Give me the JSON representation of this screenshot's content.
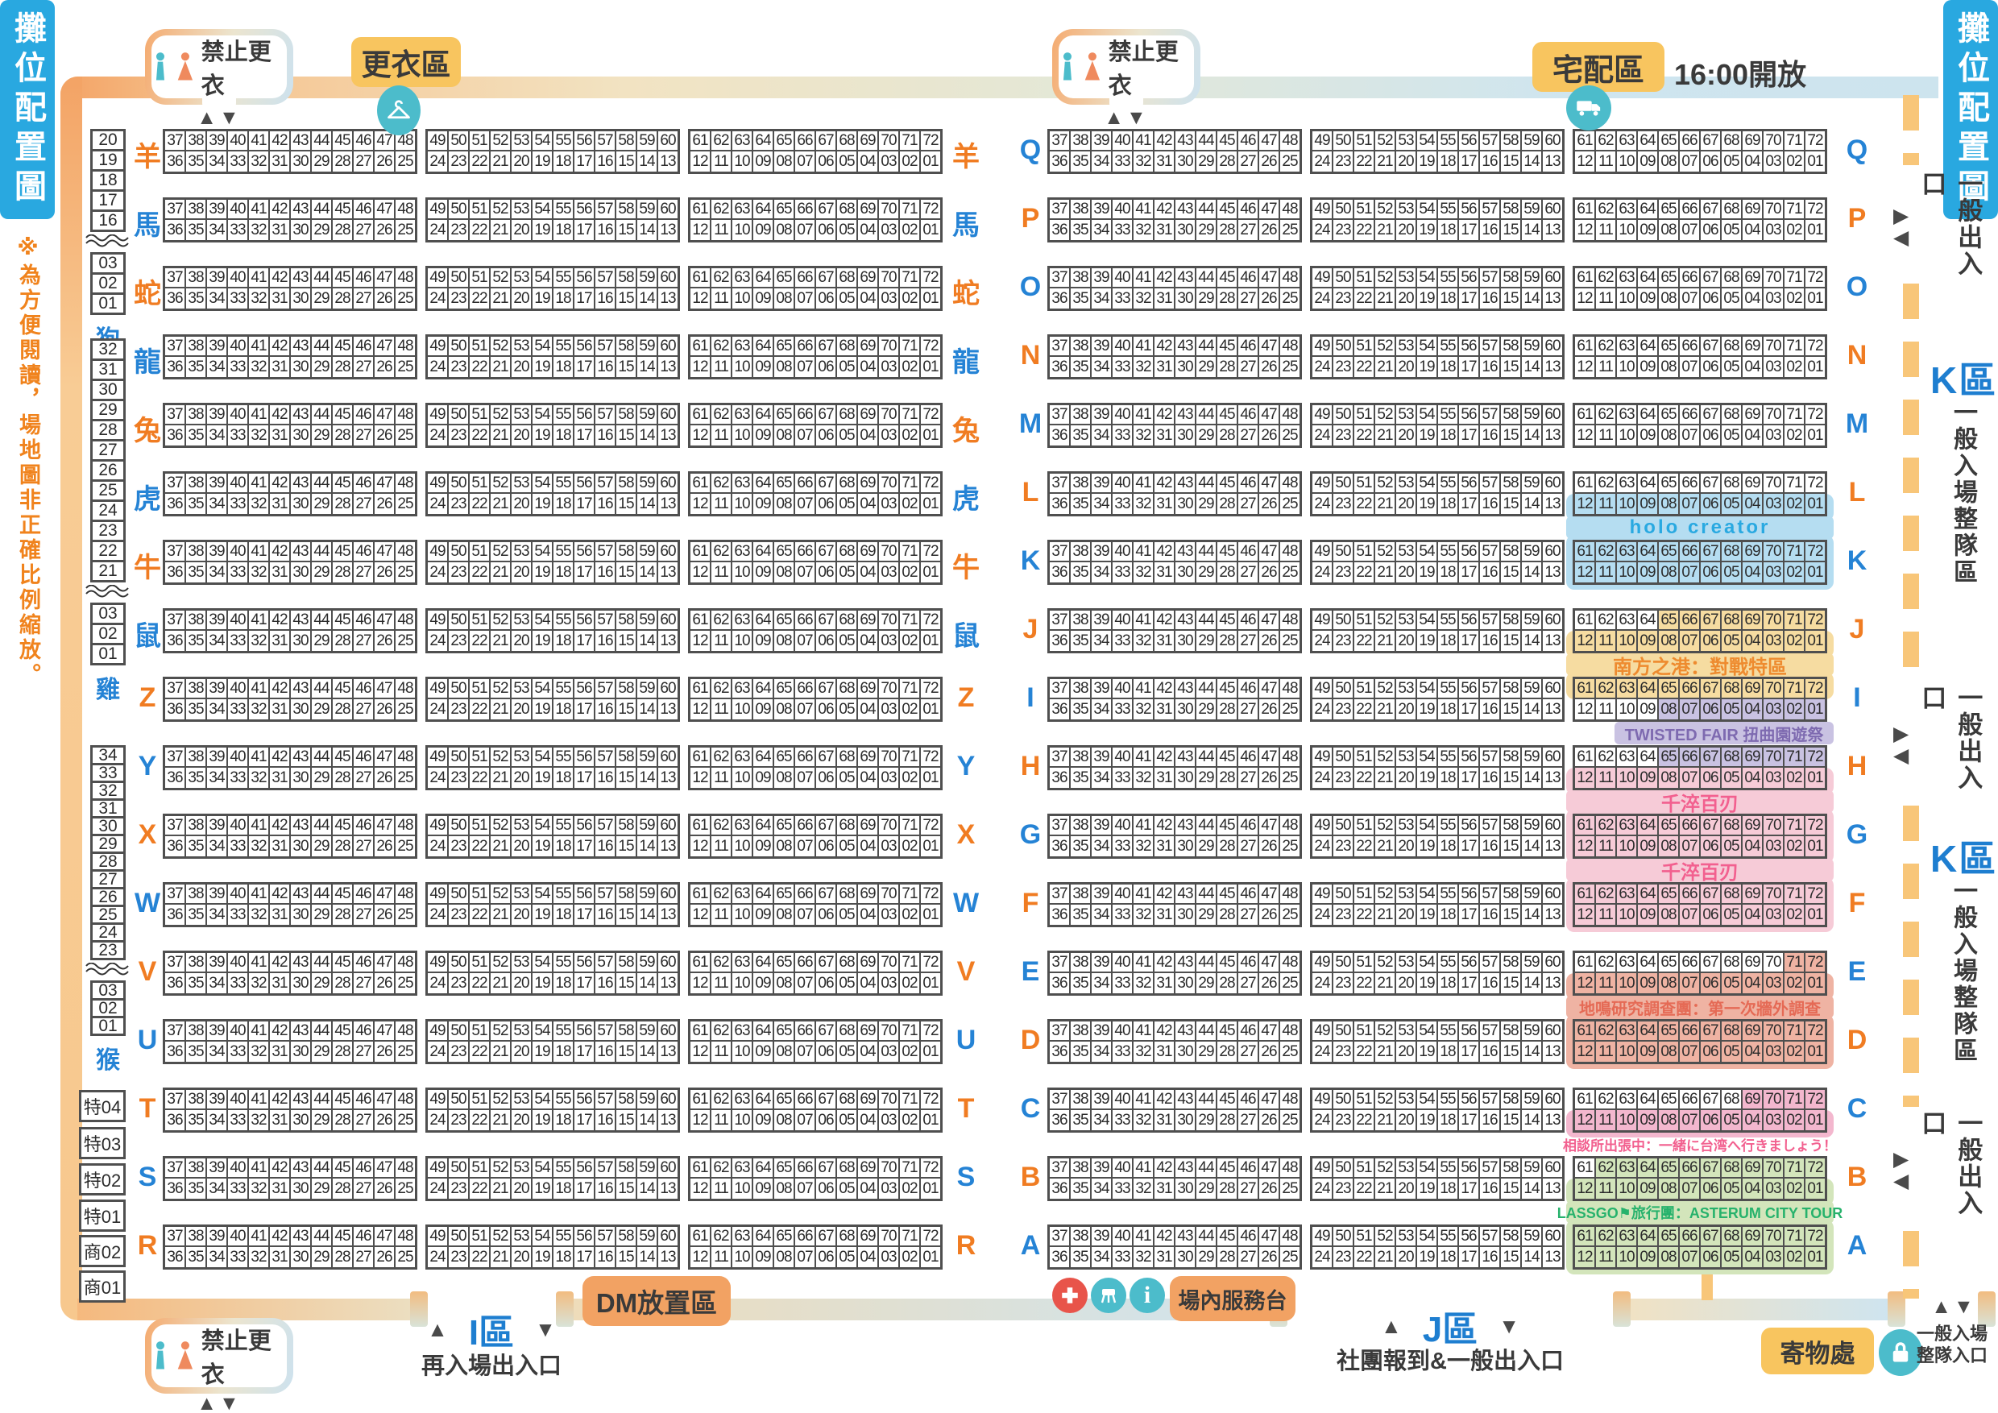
{
  "sidebars": {
    "left_title": "攤位配置圖",
    "right_title": "攤位配置圖",
    "note": "※為方便閱讀，場地圖非正確比例縮放。"
  },
  "legend_badges": {
    "no_changing": "禁止更衣",
    "changing_area": "更衣區",
    "delivery_area": "宅配區",
    "delivery_open_time": "16:00開放",
    "dm_area": "DM放置區",
    "service_counter": "場內服務台",
    "cloakroom": "寄物處"
  },
  "entrances": {
    "i_zone": "I區",
    "i_zone_desc": "再入場出入口",
    "j_zone": "J區",
    "j_zone_desc": "社團報到&一般出入口",
    "general_exit": "一般出入口",
    "k_zone": "K區",
    "queue_area": "一般入場整隊區",
    "queue_entrance_line1": "一般入場",
    "queue_entrance_line2": "整隊入口"
  },
  "icons": {
    "up": "▲",
    "down": "▼",
    "up_down": "▲▼",
    "right_arrow": "▶",
    "left_arrow": "◀",
    "info_glyph": "i",
    "names": [
      "male-icon",
      "female-icon",
      "hanger-icon",
      "truck-icon",
      "first-aid-icon",
      "stool-icon",
      "info-icon",
      "lock-icon"
    ]
  },
  "colors": {
    "accent_blue": "#29a8e0",
    "label_orange": "#f07c22",
    "label_blue": "#2583d5",
    "note_orange": "#f0831d",
    "dash_orange": "#f8c679",
    "teal_icon": "#4cbccb",
    "red_icon": "#e8544a",
    "highlight": {
      "blue": "#b5ddf1",
      "yellow": "#f6dca1",
      "purple": "#c9c2e2",
      "pink": "#f6cbd7",
      "salmon": "#efb3a3",
      "pinkC": "#f3b7ce",
      "green": "#d3e5bb"
    }
  },
  "map": {
    "blocks": [
      {
        "top": [
          "37",
          "38",
          "39",
          "40",
          "41",
          "42",
          "43",
          "44",
          "45",
          "46",
          "47",
          "48"
        ],
        "bottom": [
          "36",
          "35",
          "34",
          "33",
          "32",
          "31",
          "30",
          "29",
          "28",
          "27",
          "26",
          "25"
        ]
      },
      {
        "top": [
          "49",
          "50",
          "51",
          "52",
          "53",
          "54",
          "55",
          "56",
          "57",
          "58",
          "59",
          "60"
        ],
        "bottom": [
          "24",
          "23",
          "22",
          "21",
          "20",
          "19",
          "18",
          "17",
          "16",
          "15",
          "14",
          "13"
        ]
      },
      {
        "top": [
          "61",
          "62",
          "63",
          "64",
          "65",
          "66",
          "67",
          "68",
          "69",
          "70",
          "71",
          "72"
        ],
        "bottom": [
          "12",
          "11",
          "10",
          "09",
          "08",
          "07",
          "06",
          "05",
          "04",
          "03",
          "02",
          "01"
        ]
      }
    ],
    "rows_left": [
      {
        "label": "羊",
        "color": "orange"
      },
      {
        "label": "馬",
        "color": "blue"
      },
      {
        "label": "蛇",
        "color": "orange"
      },
      {
        "label": "龍",
        "color": "blue"
      },
      {
        "label": "兔",
        "color": "orange"
      },
      {
        "label": "虎",
        "color": "blue"
      },
      {
        "label": "牛",
        "color": "orange"
      },
      {
        "label": "鼠",
        "color": "blue"
      },
      {
        "label": "Z",
        "color": "orange"
      },
      {
        "label": "Y",
        "color": "blue"
      },
      {
        "label": "X",
        "color": "orange"
      },
      {
        "label": "W",
        "color": "blue"
      },
      {
        "label": "V",
        "color": "orange"
      },
      {
        "label": "U",
        "color": "blue"
      },
      {
        "label": "T",
        "color": "orange"
      },
      {
        "label": "S",
        "color": "blue"
      },
      {
        "label": "R",
        "color": "orange"
      }
    ],
    "rows_right": [
      {
        "label": "Q",
        "color": "blue",
        "hl": null
      },
      {
        "label": "P",
        "color": "orange",
        "hl": null
      },
      {
        "label": "O",
        "color": "blue",
        "hl": null
      },
      {
        "label": "N",
        "color": "orange",
        "hl": null
      },
      {
        "label": "M",
        "color": "blue",
        "hl": null
      },
      {
        "label": "L",
        "color": "orange",
        "hl": {
          "wrap": "bottom",
          "wrapColor": "blue",
          "top": null,
          "bottom": {
            "color": "blue",
            "from": 0,
            "to": 11
          }
        }
      },
      {
        "label": "K",
        "color": "blue",
        "hl": {
          "wrap": "full",
          "wrapColor": "blue",
          "top": {
            "color": "blue",
            "from": 0,
            "to": 11
          },
          "bottom": {
            "color": "blue",
            "from": 0,
            "to": 11
          }
        }
      },
      {
        "label": "J",
        "color": "orange",
        "hl": {
          "wrap": "bottom",
          "wrapColor": "yellow",
          "top": {
            "color": "yellow",
            "from": 4,
            "to": 11
          },
          "bottom": {
            "color": "yellow",
            "from": 0,
            "to": 11
          }
        }
      },
      {
        "label": "I",
        "color": "blue",
        "hl": {
          "wrap": "top",
          "wrapColor": "yellow",
          "top": {
            "color": "yellow",
            "from": 0,
            "to": 11
          },
          "bottom": {
            "color": "purple",
            "from": 4,
            "to": 11
          }
        }
      },
      {
        "label": "H",
        "color": "orange",
        "hl": {
          "wrap": "bottom",
          "wrapColor": "pink",
          "top": {
            "color": "purple",
            "from": 4,
            "to": 11
          },
          "bottom": {
            "color": "pink",
            "from": 0,
            "to": 11
          }
        }
      },
      {
        "label": "G",
        "color": "blue",
        "hl": {
          "wrap": "full",
          "wrapColor": "pink",
          "top": {
            "color": "pink",
            "from": 0,
            "to": 11
          },
          "bottom": {
            "color": "pink",
            "from": 0,
            "to": 11
          }
        }
      },
      {
        "label": "F",
        "color": "orange",
        "hl": {
          "wrap": "full",
          "wrapColor": "pink",
          "top": {
            "color": "pink",
            "from": 0,
            "to": 11
          },
          "bottom": {
            "color": "pink",
            "from": 0,
            "to": 11
          }
        }
      },
      {
        "label": "E",
        "color": "blue",
        "hl": {
          "wrap": "bottom",
          "wrapColor": "salmon",
          "top": {
            "color": "salmon",
            "from": 10,
            "to": 11
          },
          "bottom": {
            "color": "salmon",
            "from": 0,
            "to": 11
          }
        }
      },
      {
        "label": "D",
        "color": "orange",
        "hl": {
          "wrap": "full",
          "wrapColor": "salmon",
          "top": {
            "color": "salmon",
            "from": 0,
            "to": 11
          },
          "bottom": {
            "color": "salmon",
            "from": 0,
            "to": 11
          }
        }
      },
      {
        "label": "C",
        "color": "blue",
        "hl": {
          "wrap": "bottom",
          "wrapColor": "pinkC",
          "top": {
            "color": "pinkC",
            "from": 8,
            "to": 11
          },
          "bottom": {
            "color": "pinkC",
            "from": 0,
            "to": 11
          }
        }
      },
      {
        "label": "B",
        "color": "orange",
        "hl": {
          "wrap": "bottom",
          "wrapColor": "green",
          "top": {
            "color": "green",
            "from": 1,
            "to": 11
          },
          "bottom": {
            "color": "green",
            "from": 0,
            "to": 11
          }
        }
      },
      {
        "label": "A",
        "color": "blue",
        "hl": {
          "wrap": "full",
          "wrapColor": "green",
          "top": {
            "color": "green",
            "from": 0,
            "to": 11
          },
          "bottom": {
            "color": "green",
            "from": 0,
            "to": 11
          }
        }
      }
    ],
    "banners": [
      {
        "after": 5,
        "text": "holo creator",
        "color": "#29a9e1",
        "bg": "blue",
        "fs": 24,
        "ls": 3
      },
      {
        "after": 7,
        "text": "南方之港：對戰特區",
        "color": "#ee8b2f",
        "bg": "yellow",
        "fs": 24
      },
      {
        "after": 8,
        "text": "TWISTED FAIR 扭曲園遊祭",
        "color": "#7e6ab0",
        "bg": "purple",
        "fs": 20,
        "inset": 60
      },
      {
        "after": 9,
        "text": "千淬百刃",
        "color": "#f2608f",
        "bg": "pink",
        "fs": 24
      },
      {
        "after": 10,
        "text": "千淬百刃",
        "color": "#f2608f",
        "bg": "pink",
        "fs": 24
      },
      {
        "after": 12,
        "text": "地鳴研究調查團：第一次牆外調查",
        "color": "#e56a55",
        "bg": "salmon",
        "fs": 20
      },
      {
        "after": 14,
        "text": "相談所出張中：一緒に台湾へ行きましょう！",
        "color": "#f2608f",
        "bg": null,
        "fs": 17
      },
      {
        "after": 15,
        "text": "LASSGO⚑旅行團：ASTERUM CITY TOUR",
        "color": "#27b26c",
        "bg": "green",
        "fs": 18
      }
    ],
    "wall_left": {
      "groups": [
        {
          "cells": [
            "20",
            "19",
            "18",
            "17",
            "16"
          ],
          "cells2": [
            "03",
            "02",
            "01"
          ],
          "label": "狗"
        },
        {
          "cells": [
            "32",
            "31",
            "30",
            "29",
            "28",
            "27",
            "26",
            "25",
            "24",
            "23",
            "22",
            "21"
          ],
          "cells2": [
            "03",
            "02",
            "01"
          ],
          "label": "雞"
        },
        {
          "cells": [
            "34",
            "33",
            "32",
            "31",
            "30",
            "29",
            "28",
            "27",
            "26",
            "25",
            "24",
            "23"
          ],
          "cells2": [
            "03",
            "02",
            "01"
          ],
          "label": "猴"
        }
      ],
      "special_boxes": [
        "特04",
        "特03",
        "特02",
        "特01",
        "商02",
        "商01"
      ]
    }
  }
}
